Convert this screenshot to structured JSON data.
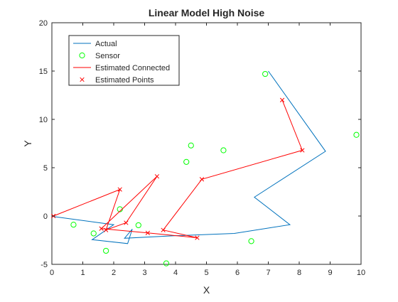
{
  "chart_data": {
    "type": "line",
    "title": "Linear Model High Noise",
    "xlabel": "X",
    "ylabel": "Y",
    "xlim": [
      0,
      10
    ],
    "ylim": [
      -5,
      20
    ],
    "xticks": [
      0,
      1,
      2,
      3,
      4,
      5,
      6,
      7,
      8,
      9,
      10
    ],
    "yticks": [
      -5,
      0,
      5,
      10,
      15,
      20
    ],
    "grid": false,
    "legend_position": "top-left",
    "series": [
      {
        "name": "Actual",
        "style": "line",
        "color": "#0072BD",
        "x": [
          7.0,
          8.85,
          6.55,
          7.7,
          5.9,
          3.9,
          2.35,
          2.6,
          2.45,
          1.3,
          2.0,
          0.05
        ],
        "y": [
          15.0,
          6.7,
          1.95,
          -0.9,
          -1.8,
          -2.05,
          -2.3,
          -1.35,
          -2.85,
          -2.45,
          -0.9,
          -0.05
        ]
      },
      {
        "name": "Sensor",
        "style": "marker-circle",
        "color": "#00FF00",
        "x": [
          0.7,
          1.35,
          1.75,
          2.2,
          2.8,
          3.7,
          4.35,
          4.5,
          5.55,
          6.45,
          6.9,
          9.85
        ],
        "y": [
          -0.9,
          -1.8,
          -3.6,
          0.7,
          -0.95,
          -4.9,
          5.6,
          7.3,
          6.8,
          -2.6,
          14.7,
          8.4
        ]
      },
      {
        "name": "Estimated Connected",
        "style": "line",
        "color": "#FF0000",
        "x": [
          7.45,
          8.1,
          4.85,
          3.6,
          4.7,
          3.1,
          1.6,
          3.4,
          2.4,
          1.75,
          2.2,
          0.05
        ],
        "y": [
          12.0,
          6.8,
          3.8,
          -1.45,
          -2.25,
          -1.75,
          -1.3,
          4.1,
          -0.7,
          -1.45,
          2.75,
          0.0
        ]
      },
      {
        "name": "Estimated Points",
        "style": "marker-x",
        "color": "#FF0000",
        "x": [
          7.45,
          8.1,
          4.85,
          3.6,
          4.7,
          3.1,
          1.6,
          3.4,
          2.4,
          1.75,
          2.2,
          0.05
        ],
        "y": [
          12.0,
          6.8,
          3.8,
          -1.45,
          -2.25,
          -1.75,
          -1.3,
          4.1,
          -0.7,
          -1.45,
          2.75,
          0.0
        ]
      }
    ]
  }
}
